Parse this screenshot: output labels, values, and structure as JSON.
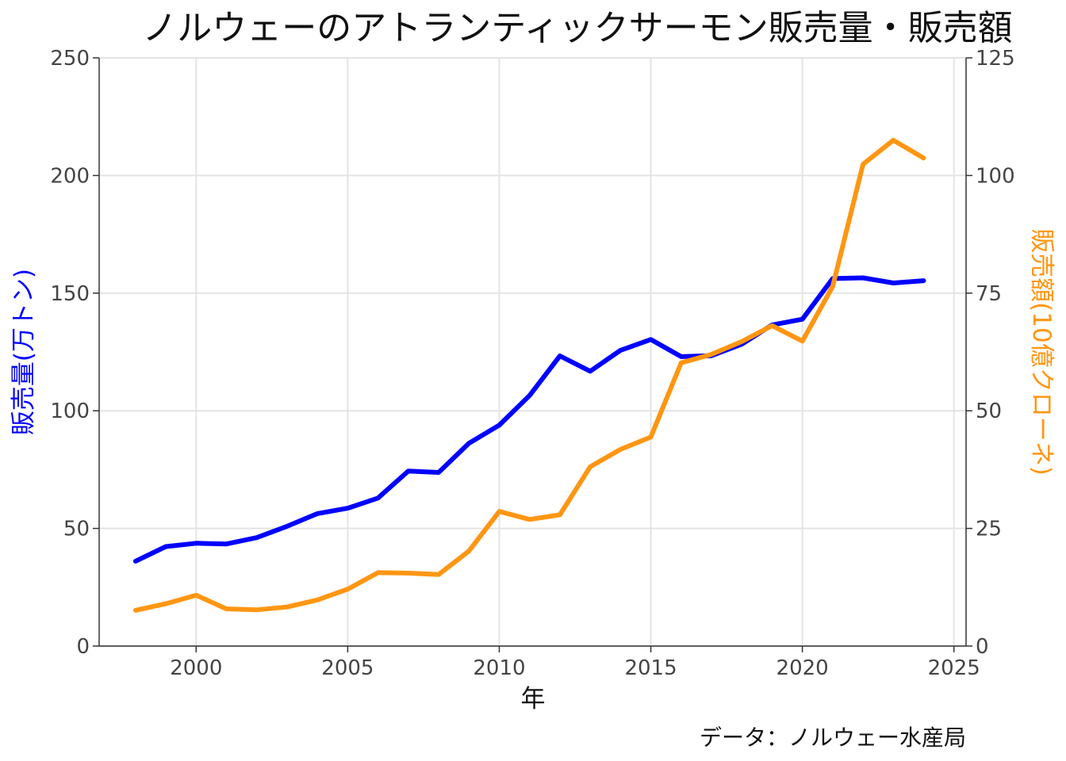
{
  "chart_data": {
    "type": "line",
    "title": "ノルウェーのアトランティックサーモン販売量・販売額",
    "xlabel": "年",
    "ylabel_left": "販売量(万トン)",
    "ylabel_right": "販売額(10億クローネ)",
    "caption": "データ：ノルウェー水産局",
    "xlim": [
      1996.8,
      2025.4
    ],
    "ylim_left": [
      0,
      250
    ],
    "ylim_right": [
      0,
      125
    ],
    "x_ticks": [
      2000,
      2005,
      2010,
      2015,
      2020,
      2025
    ],
    "y_ticks_left": [
      0,
      50,
      100,
      150,
      200,
      250
    ],
    "y_ticks_right": [
      0,
      25,
      50,
      75,
      100,
      125
    ],
    "grid": true,
    "x": [
      1998,
      1999,
      2000,
      2001,
      2002,
      2003,
      2004,
      2005,
      2006,
      2007,
      2008,
      2009,
      2010,
      2011,
      2012,
      2013,
      2014,
      2015,
      2016,
      2017,
      2018,
      2019,
      2020,
      2021,
      2022,
      2023,
      2024
    ],
    "series": [
      {
        "axis": "left",
        "color": "#0000ff",
        "values": [
          36.1,
          42.3,
          43.7,
          43.4,
          46.1,
          50.9,
          56.3,
          58.6,
          62.9,
          74.4,
          73.8,
          86.2,
          93.9,
          106.5,
          123.3,
          116.8,
          125.7,
          130.3,
          123.0,
          123.4,
          128.3,
          136.5,
          138.9,
          156.2,
          156.5,
          154.3,
          155.3
        ]
      },
      {
        "axis": "right",
        "color": "#ff9612",
        "values": [
          7.6,
          9.0,
          10.8,
          7.9,
          7.7,
          8.3,
          9.8,
          12.1,
          15.6,
          15.5,
          15.2,
          20.2,
          28.6,
          26.9,
          27.9,
          38.1,
          41.8,
          44.4,
          60.2,
          62.0,
          64.7,
          68.1,
          64.8,
          76.4,
          102.4,
          107.5,
          103.7
        ]
      }
    ]
  }
}
